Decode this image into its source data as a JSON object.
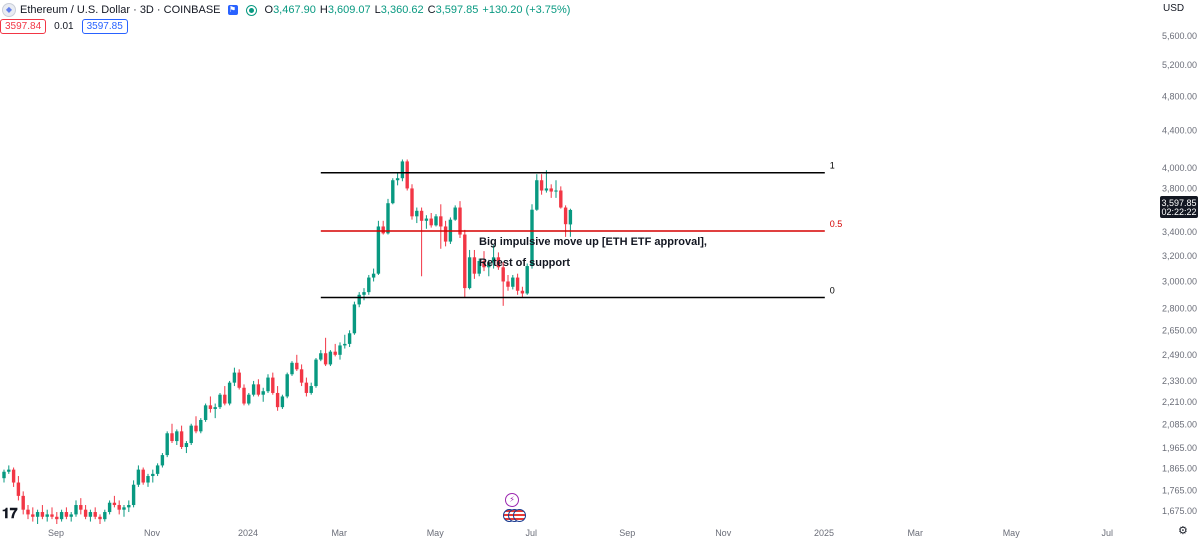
{
  "header": {
    "symbol_icon": "ethereum-logo-icon",
    "title": "Ethereum / U.S. Dollar · 3D · COINBASE",
    "ohlc": [
      {
        "label": "O",
        "value": "3,467.90"
      },
      {
        "label": "H",
        "value": "3,609.07"
      },
      {
        "label": "L",
        "value": "3,360.62"
      },
      {
        "label": "C",
        "value": "3,597.85"
      }
    ],
    "change": "+130.20 (+3.75%)"
  },
  "quote": {
    "sell": "3597.84",
    "spread": "0.01",
    "buy": "3597.85"
  },
  "axis": {
    "currency": "USD",
    "last_price": "3,597.85",
    "countdown": "02:22:22"
  },
  "colors": {
    "up": "#089981",
    "down": "#f23645",
    "support": "#d50000",
    "level": "#000000"
  },
  "chart_data": {
    "type": "candlestick",
    "y_scale": "log",
    "ylim": [
      1620,
      5800
    ],
    "y_ticks": [
      {
        "value": 5600,
        "label": "5,600.00"
      },
      {
        "value": 5200,
        "label": "5,200.00"
      },
      {
        "value": 4800,
        "label": "4,800.00"
      },
      {
        "value": 4400,
        "label": "4,400.00"
      },
      {
        "value": 4000,
        "label": "4,000.00"
      },
      {
        "value": 3800,
        "label": "3,800.00"
      },
      {
        "value": 3600,
        "label": "3,600.00"
      },
      {
        "value": 3400,
        "label": "3,400.00"
      },
      {
        "value": 3200,
        "label": "3,200.00"
      },
      {
        "value": 3000,
        "label": "3,000.00"
      },
      {
        "value": 2800,
        "label": "2,800.00"
      },
      {
        "value": 2650,
        "label": "2,650.00"
      },
      {
        "value": 2490,
        "label": "2,490.00"
      },
      {
        "value": 2330,
        "label": "2,330.00"
      },
      {
        "value": 2210,
        "label": "2,210.00"
      },
      {
        "value": 2085,
        "label": "2,085.00"
      },
      {
        "value": 1965,
        "label": "1,965.00"
      },
      {
        "value": 1865,
        "label": "1,865.00"
      },
      {
        "value": 1765,
        "label": "1,765.00"
      },
      {
        "value": 1675,
        "label": "1,675.00"
      }
    ],
    "x_ticks": [
      {
        "label": "Sep",
        "index": -20
      },
      {
        "label": "Nov",
        "index": 0
      },
      {
        "label": "2024",
        "index": 20
      },
      {
        "label": "Mar",
        "index": 39
      },
      {
        "label": "May",
        "index": 59
      },
      {
        "label": "Jul",
        "index": 79
      },
      {
        "label": "Sep",
        "index": 99
      },
      {
        "label": "Nov",
        "index": 119
      },
      {
        "label": "2025",
        "index": 140
      },
      {
        "label": "Mar",
        "index": 159
      },
      {
        "label": "May",
        "index": 179
      },
      {
        "label": "Jul",
        "index": 199
      }
    ],
    "candles": [
      [
        1820,
        1860,
        1800,
        1850
      ],
      [
        1850,
        1880,
        1840,
        1860
      ],
      [
        1860,
        1870,
        1780,
        1800
      ],
      [
        1800,
        1830,
        1720,
        1740
      ],
      [
        1740,
        1760,
        1660,
        1680
      ],
      [
        1680,
        1700,
        1640,
        1660
      ],
      [
        1660,
        1690,
        1630,
        1650
      ],
      [
        1650,
        1680,
        1620,
        1670
      ],
      [
        1670,
        1700,
        1640,
        1650
      ],
      [
        1650,
        1680,
        1630,
        1660
      ],
      [
        1660,
        1690,
        1640,
        1650
      ],
      [
        1650,
        1670,
        1620,
        1640
      ],
      [
        1640,
        1680,
        1630,
        1670
      ],
      [
        1670,
        1690,
        1640,
        1650
      ],
      [
        1650,
        1670,
        1630,
        1660
      ],
      [
        1660,
        1720,
        1650,
        1700
      ],
      [
        1700,
        1730,
        1660,
        1680
      ],
      [
        1680,
        1700,
        1640,
        1650
      ],
      [
        1650,
        1680,
        1630,
        1670
      ],
      [
        1670,
        1690,
        1640,
        1650
      ],
      [
        1650,
        1660,
        1620,
        1640
      ],
      [
        1640,
        1680,
        1630,
        1670
      ],
      [
        1670,
        1720,
        1660,
        1710
      ],
      [
        1710,
        1740,
        1690,
        1700
      ],
      [
        1700,
        1720,
        1660,
        1680
      ],
      [
        1680,
        1700,
        1650,
        1690
      ],
      [
        1690,
        1720,
        1670,
        1700
      ],
      [
        1700,
        1810,
        1690,
        1790
      ],
      [
        1790,
        1880,
        1780,
        1860
      ],
      [
        1860,
        1870,
        1790,
        1800
      ],
      [
        1800,
        1840,
        1780,
        1830
      ],
      [
        1830,
        1860,
        1800,
        1840
      ],
      [
        1840,
        1890,
        1830,
        1880
      ],
      [
        1880,
        1940,
        1870,
        1930
      ],
      [
        1930,
        2050,
        1920,
        2040
      ],
      [
        2040,
        2090,
        1990,
        2000
      ],
      [
        2000,
        2060,
        1980,
        2050
      ],
      [
        2050,
        2080,
        1960,
        1970
      ],
      [
        1970,
        2000,
        1940,
        1990
      ],
      [
        1990,
        2090,
        1980,
        2080
      ],
      [
        2080,
        2130,
        2040,
        2050
      ],
      [
        2050,
        2120,
        2040,
        2110
      ],
      [
        2110,
        2200,
        2100,
        2190
      ],
      [
        2190,
        2240,
        2150,
        2170
      ],
      [
        2170,
        2200,
        2120,
        2180
      ],
      [
        2180,
        2260,
        2170,
        2250
      ],
      [
        2250,
        2300,
        2190,
        2200
      ],
      [
        2200,
        2330,
        2190,
        2320
      ],
      [
        2320,
        2410,
        2300,
        2380
      ],
      [
        2380,
        2400,
        2280,
        2290
      ],
      [
        2290,
        2310,
        2190,
        2200
      ],
      [
        2200,
        2260,
        2190,
        2250
      ],
      [
        2250,
        2330,
        2240,
        2310
      ],
      [
        2310,
        2340,
        2240,
        2250
      ],
      [
        2250,
        2290,
        2210,
        2270
      ],
      [
        2270,
        2370,
        2260,
        2350
      ],
      [
        2350,
        2380,
        2250,
        2260
      ],
      [
        2260,
        2300,
        2160,
        2180
      ],
      [
        2180,
        2250,
        2170,
        2240
      ],
      [
        2240,
        2380,
        2230,
        2370
      ],
      [
        2370,
        2450,
        2360,
        2440
      ],
      [
        2440,
        2490,
        2390,
        2400
      ],
      [
        2400,
        2430,
        2300,
        2320
      ],
      [
        2320,
        2350,
        2240,
        2260
      ],
      [
        2260,
        2320,
        2250,
        2300
      ],
      [
        2300,
        2470,
        2290,
        2460
      ],
      [
        2460,
        2520,
        2450,
        2500
      ],
      [
        2500,
        2600,
        2420,
        2430
      ],
      [
        2430,
        2520,
        2420,
        2510
      ],
      [
        2510,
        2560,
        2480,
        2490
      ],
      [
        2490,
        2570,
        2460,
        2550
      ],
      [
        2550,
        2620,
        2530,
        2560
      ],
      [
        2560,
        2650,
        2540,
        2630
      ],
      [
        2630,
        2850,
        2620,
        2830
      ],
      [
        2830,
        2920,
        2810,
        2900
      ],
      [
        2900,
        2950,
        2860,
        2920
      ],
      [
        2920,
        3050,
        2900,
        3030
      ],
      [
        3030,
        3100,
        3000,
        3060
      ],
      [
        3060,
        3500,
        3050,
        3450
      ],
      [
        3450,
        3500,
        3380,
        3390
      ],
      [
        3390,
        3700,
        3380,
        3660
      ],
      [
        3660,
        3900,
        3650,
        3880
      ],
      [
        3880,
        3960,
        3830,
        3900
      ],
      [
        3900,
        4090,
        3870,
        4070
      ],
      [
        4070,
        4090,
        3780,
        3800
      ],
      [
        3800,
        3840,
        3510,
        3540
      ],
      [
        3540,
        3620,
        3480,
        3590
      ],
      [
        3590,
        3620,
        3040,
        3500
      ],
      [
        3500,
        3550,
        3430,
        3520
      ],
      [
        3520,
        3570,
        3440,
        3460
      ],
      [
        3460,
        3560,
        3450,
        3540
      ],
      [
        3540,
        3650,
        3260,
        3450
      ],
      [
        3450,
        3500,
        3280,
        3320
      ],
      [
        3320,
        3530,
        3300,
        3510
      ],
      [
        3510,
        3640,
        3500,
        3620
      ],
      [
        3620,
        3680,
        3350,
        3380
      ],
      [
        3380,
        3420,
        2880,
        2950
      ],
      [
        2950,
        3250,
        2940,
        3190
      ],
      [
        3190,
        3250,
        3020,
        3060
      ],
      [
        3060,
        3180,
        3040,
        3160
      ],
      [
        3160,
        3240,
        3080,
        3110
      ],
      [
        3110,
        3170,
        3040,
        3150
      ],
      [
        3150,
        3290,
        3100,
        3190
      ],
      [
        3190,
        3230,
        3090,
        3110
      ],
      [
        3110,
        3150,
        2820,
        3000
      ],
      [
        3000,
        3050,
        2930,
        2960
      ],
      [
        2960,
        3050,
        2940,
        3030
      ],
      [
        3030,
        3060,
        2900,
        2930
      ],
      [
        2930,
        2960,
        2880,
        2910
      ],
      [
        2910,
        3140,
        2900,
        3120
      ],
      [
        3120,
        3650,
        3100,
        3600
      ],
      [
        3600,
        3940,
        3590,
        3880
      ],
      [
        3880,
        3940,
        3740,
        3780
      ],
      [
        3780,
        3980,
        3760,
        3800
      ],
      [
        3800,
        3840,
        3710,
        3770
      ],
      [
        3770,
        3880,
        3710,
        3780
      ],
      [
        3780,
        3820,
        3610,
        3620
      ],
      [
        3620,
        3640,
        3360,
        3470
      ],
      [
        3467.9,
        3609.07,
        3360.62,
        3597.85
      ]
    ],
    "levels": [
      {
        "label": "1",
        "value": 3955,
        "color": "#000000"
      },
      {
        "label": "0.5",
        "value": 3410,
        "color": "#d50000"
      },
      {
        "label": "0",
        "value": 2880,
        "color": "#000000"
      }
    ],
    "annotations": [
      {
        "text": "Big impulsive move up [ETH ETF approval],"
      },
      {
        "text": "Retest of support"
      }
    ]
  }
}
